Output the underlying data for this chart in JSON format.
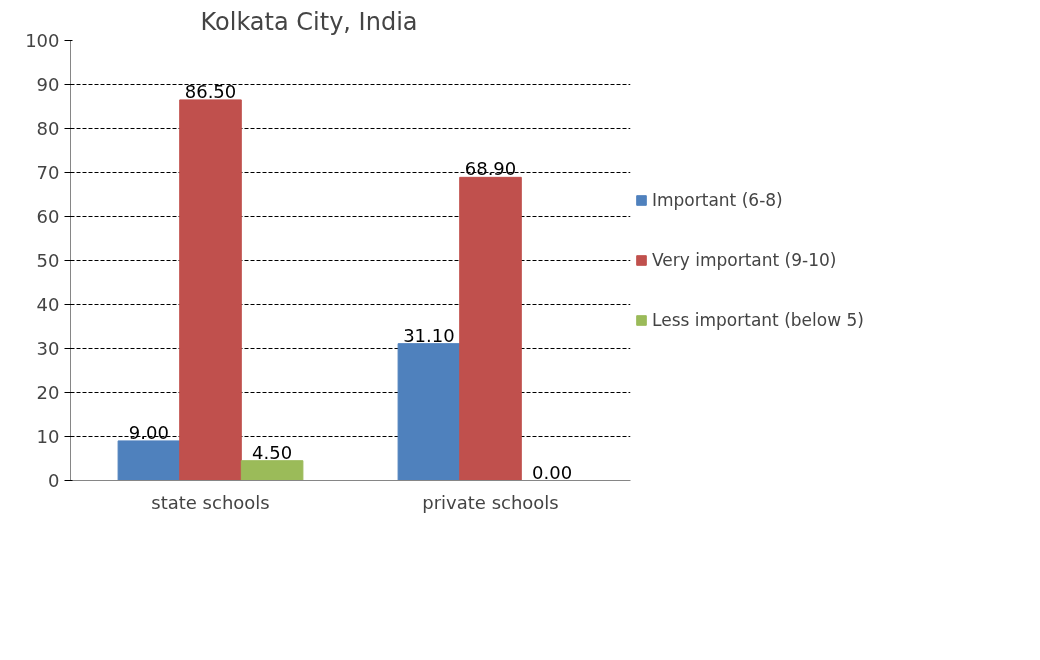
{
  "chart_data": {
    "type": "bar",
    "title": "Kolkata City, India",
    "categories": [
      "state schools",
      "private schools"
    ],
    "series": [
      {
        "name": "Important (6-8)",
        "color": "#4f81bd",
        "values": [
          9.0,
          31.1
        ],
        "value_labels": [
          "9.00",
          "31.10"
        ]
      },
      {
        "name": "Very important (9-10)",
        "color": "#c0504d",
        "values": [
          86.5,
          68.9
        ],
        "value_labels": [
          "86.50",
          "68.90"
        ]
      },
      {
        "name": "Less important (below 5)",
        "color": "#9bbb59",
        "values": [
          4.5,
          0.0
        ],
        "value_labels": [
          "4.50",
          "0.00"
        ]
      }
    ],
    "ylim": [
      0,
      100
    ],
    "yticks": [
      0,
      10,
      20,
      30,
      40,
      50,
      60,
      70,
      80,
      90,
      100
    ],
    "grid": "y",
    "legend": "right"
  }
}
